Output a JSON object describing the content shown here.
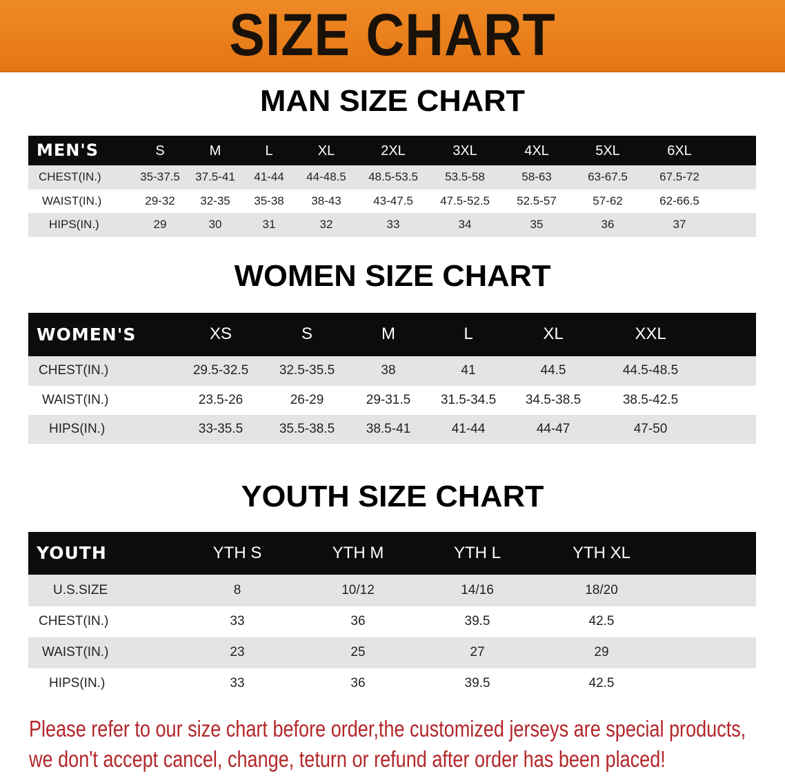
{
  "banner": {
    "title": "SIZE CHART",
    "color": "#e97d1b"
  },
  "men": {
    "title": "MAN SIZE CHART",
    "header_label": "MEN'S",
    "sizes": [
      "S",
      "M",
      "L",
      "XL",
      "2XL",
      "3XL",
      "4XL",
      "5XL",
      "6XL"
    ],
    "rows": [
      {
        "label": "CHEST(IN.)",
        "values": [
          "35-37.5",
          "37.5-41",
          "41-44",
          "44-48.5",
          "48.5-53.5",
          "53.5-58",
          "58-63",
          "63-67.5",
          "67.5-72"
        ]
      },
      {
        "label": "WAIST(IN.)",
        "values": [
          "29-32",
          "32-35",
          "35-38",
          "38-43",
          "43-47.5",
          "47.5-52.5",
          "52.5-57",
          "57-62",
          "62-66.5"
        ]
      },
      {
        "label": "HIPS(IN.)",
        "values": [
          "29",
          "30",
          "31",
          "32",
          "33",
          "34",
          "35",
          "36",
          "37"
        ]
      }
    ]
  },
  "women": {
    "title": "WOMEN SIZE CHART",
    "header_label": "WOMEN'S",
    "sizes": [
      "XS",
      "S",
      "M",
      "L",
      "XL",
      "XXL"
    ],
    "rows": [
      {
        "label": "CHEST(IN.)",
        "values": [
          "29.5-32.5",
          "32.5-35.5",
          "38",
          "41",
          "44.5",
          "44.5-48.5"
        ]
      },
      {
        "label": "WAIST(IN.)",
        "values": [
          "23.5-26",
          "26-29",
          "29-31.5",
          "31.5-34.5",
          "34.5-38.5",
          "38.5-42.5"
        ]
      },
      {
        "label": "HIPS(IN.)",
        "values": [
          "33-35.5",
          "35.5-38.5",
          "38.5-41",
          "41-44",
          "44-47",
          "47-50"
        ]
      }
    ]
  },
  "youth": {
    "title": "YOUTH SIZE CHART",
    "header_label": "YOUTH",
    "sizes": [
      "YTH S",
      "YTH M",
      "YTH L",
      "YTH XL"
    ],
    "rows": [
      {
        "label": "U.S.SIZE",
        "values": [
          "8",
          "10/12",
          "14/16",
          "18/20"
        ]
      },
      {
        "label": "CHEST(IN.)",
        "values": [
          "33",
          "36",
          "39.5",
          "42.5"
        ]
      },
      {
        "label": "WAIST(IN.)",
        "values": [
          "23",
          "25",
          "27",
          "29"
        ]
      },
      {
        "label": "HIPS(IN.)",
        "values": [
          "33",
          "36",
          "39.5",
          "42.5"
        ]
      }
    ]
  },
  "note": {
    "line1": "Please refer to our size chart before order,the customized jerseys are special products,",
    "line2": "we don't accept cancel, change, teturn or refund after order has been placed!",
    "color": "#b3262a"
  }
}
